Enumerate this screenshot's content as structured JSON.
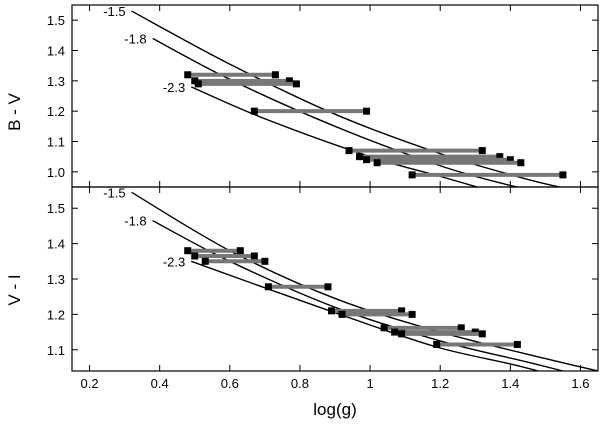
{
  "chart_data": {
    "type": "line",
    "xlabel": "log(g)",
    "x_ticks": [
      "0.2",
      "0.4",
      "0.6",
      "0.8",
      "1",
      "1.2",
      "1.4",
      "1.6"
    ],
    "xlim": [
      0.15,
      1.65
    ],
    "panels": [
      {
        "ylabel": "B - V",
        "ylim": [
          0.95,
          1.55
        ],
        "y_ticks": [
          "1.0",
          "1.1",
          "1.2",
          "1.3",
          "1.4",
          "1.5"
        ],
        "series": [
          {
            "name": "-1.5",
            "x": [
              0.32,
              0.6,
              0.9,
              1.2,
              1.45,
              1.6
            ],
            "y": [
              1.53,
              1.355,
              1.19,
              1.06,
              0.975,
              0.935
            ]
          },
          {
            "name": "-1.8",
            "x": [
              0.38,
              0.6,
              0.9,
              1.2,
              1.4,
              1.52
            ],
            "y": [
              1.44,
              1.305,
              1.15,
              1.02,
              0.955,
              0.925
            ]
          },
          {
            "name": "-2.3",
            "x": [
              0.49,
              0.7,
              1.0,
              1.2,
              1.35
            ],
            "y": [
              1.28,
              1.175,
              1.05,
              0.985,
              0.935
            ]
          }
        ],
        "segments": [
          {
            "x": [
              0.48,
              0.73
            ],
            "y": [
              1.32,
              1.32
            ]
          },
          {
            "x": [
              0.5,
              0.77
            ],
            "y": [
              1.3,
              1.3
            ]
          },
          {
            "x": [
              0.51,
              0.79
            ],
            "y": [
              1.29,
              1.29
            ]
          },
          {
            "x": [
              0.67,
              0.99
            ],
            "y": [
              1.2,
              1.2
            ]
          },
          {
            "x": [
              0.94,
              1.32
            ],
            "y": [
              1.07,
              1.07
            ]
          },
          {
            "x": [
              0.97,
              1.37
            ],
            "y": [
              1.05,
              1.05
            ]
          },
          {
            "x": [
              0.99,
              1.4
            ],
            "y": [
              1.04,
              1.04
            ]
          },
          {
            "x": [
              1.02,
              1.43
            ],
            "y": [
              1.03,
              1.03
            ]
          },
          {
            "x": [
              1.12,
              1.55
            ],
            "y": [
              0.99,
              0.99
            ]
          }
        ]
      },
      {
        "ylabel": "V - I",
        "ylim": [
          1.04,
          1.56
        ],
        "y_ticks": [
          "1.1",
          "1.2",
          "1.3",
          "1.4",
          "1.5"
        ],
        "series": [
          {
            "name": "-1.5",
            "x": [
              0.32,
              0.6,
              0.9,
              1.2,
              1.5,
              1.65
            ],
            "y": [
              1.545,
              1.38,
              1.245,
              1.15,
              1.075,
              1.04
            ]
          },
          {
            "name": "-1.8",
            "x": [
              0.38,
              0.6,
              0.9,
              1.2,
              1.45,
              1.55
            ],
            "y": [
              1.465,
              1.35,
              1.22,
              1.125,
              1.065,
              1.04
            ]
          },
          {
            "name": "-2.3",
            "x": [
              0.49,
              0.7,
              1.0,
              1.2,
              1.4,
              1.48
            ],
            "y": [
              1.35,
              1.275,
              1.17,
              1.105,
              1.06,
              1.04
            ]
          }
        ],
        "segments": [
          {
            "x": [
              0.48,
              0.63
            ],
            "y": [
              1.38,
              1.38
            ]
          },
          {
            "x": [
              0.5,
              0.67
            ],
            "y": [
              1.365,
              1.365
            ]
          },
          {
            "x": [
              0.53,
              0.7
            ],
            "y": [
              1.35,
              1.35
            ]
          },
          {
            "x": [
              0.71,
              0.88
            ],
            "y": [
              1.278,
              1.278
            ]
          },
          {
            "x": [
              0.89,
              1.09
            ],
            "y": [
              1.21,
              1.21
            ]
          },
          {
            "x": [
              0.92,
              1.12
            ],
            "y": [
              1.2,
              1.2
            ]
          },
          {
            "x": [
              1.04,
              1.26
            ],
            "y": [
              1.162,
              1.162
            ]
          },
          {
            "x": [
              1.07,
              1.3
            ],
            "y": [
              1.15,
              1.15
            ]
          },
          {
            "x": [
              1.09,
              1.32
            ],
            "y": [
              1.145,
              1.145
            ]
          },
          {
            "x": [
              1.19,
              1.42
            ],
            "y": [
              1.115,
              1.115
            ]
          }
        ]
      }
    ]
  }
}
